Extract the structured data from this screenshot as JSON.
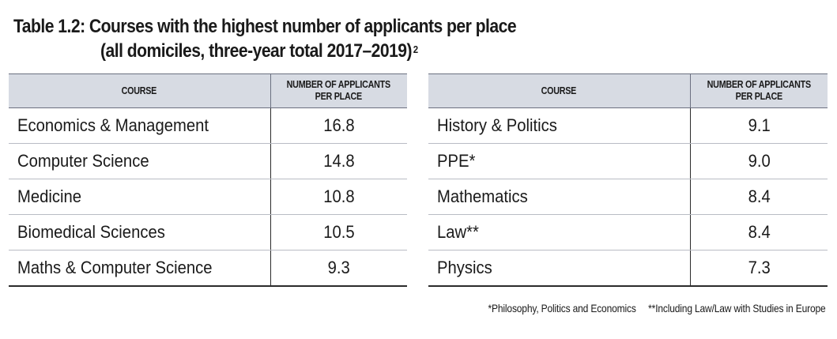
{
  "title": {
    "line1": "Table 1.2: Courses with the highest number of applicants per place",
    "line2": "(all domiciles, three-year total 2017–2019)",
    "superscript": "2"
  },
  "headers": {
    "course": "COURSE",
    "applicants_line1": "NUMBER OF APPLICANTS",
    "applicants_line2": "PER PLACE"
  },
  "left_rows": [
    {
      "course": "Economics & Management",
      "value": "16.8"
    },
    {
      "course": "Computer Science",
      "value": "14.8"
    },
    {
      "course": "Medicine",
      "value": "10.8"
    },
    {
      "course": "Biomedical Sciences",
      "value": "10.5"
    },
    {
      "course": "Maths & Computer Science",
      "value": "9.3"
    }
  ],
  "right_rows": [
    {
      "course": "History & Politics",
      "value": "9.1"
    },
    {
      "course": "PPE*",
      "value": "9.0"
    },
    {
      "course": "Mathematics",
      "value": "8.4"
    },
    {
      "course": "Law**",
      "value": "8.4"
    },
    {
      "course": "Physics",
      "value": "7.3"
    }
  ],
  "footnotes": {
    "ppe": "*Philosophy, Politics and Economics",
    "law": "**Including Law/Law with Studies in Europe"
  }
}
